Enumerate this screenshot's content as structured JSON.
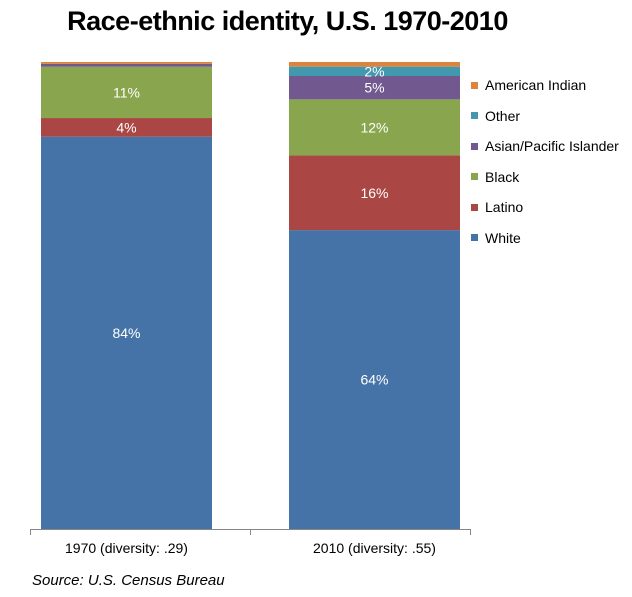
{
  "chart_data": {
    "type": "stacked-bar",
    "title": "Race-ethnic identity, U.S. 1970-2010",
    "categories": [
      "1970 (diversity: .29)",
      "2010 (diversity: .55)"
    ],
    "ylim": [
      0,
      100
    ],
    "stack_order": [
      "White",
      "Latino",
      "Black",
      "Asian/Pacific Islander",
      "Other",
      "American Indian"
    ],
    "series": [
      {
        "name": "White",
        "color": "#4573a7",
        "values": [
          84,
          64
        ],
        "labels": [
          "84%",
          "64%"
        ]
      },
      {
        "name": "Latino",
        "color": "#aa4744",
        "values": [
          4,
          16
        ],
        "labels": [
          "4%",
          "16%"
        ]
      },
      {
        "name": "Black",
        "color": "#89a54e",
        "values": [
          11,
          12
        ],
        "labels": [
          "11%",
          "12%"
        ]
      },
      {
        "name": "Asian/Pacific Islander",
        "color": "#71588f",
        "values": [
          0.6,
          5
        ],
        "labels": [
          "",
          "5%"
        ]
      },
      {
        "name": "Other",
        "color": "#4298af",
        "values": [
          0,
          2
        ],
        "labels": [
          "",
          "2%"
        ]
      },
      {
        "name": "American Indian",
        "color": "#db843d",
        "values": [
          0.4,
          1
        ],
        "labels": [
          "",
          ""
        ]
      }
    ],
    "legend_order": [
      "American Indian",
      "Other",
      "Asian/Pacific Islander",
      "Black",
      "Latino",
      "White"
    ],
    "source": "Source: U.S. Census Bureau"
  }
}
